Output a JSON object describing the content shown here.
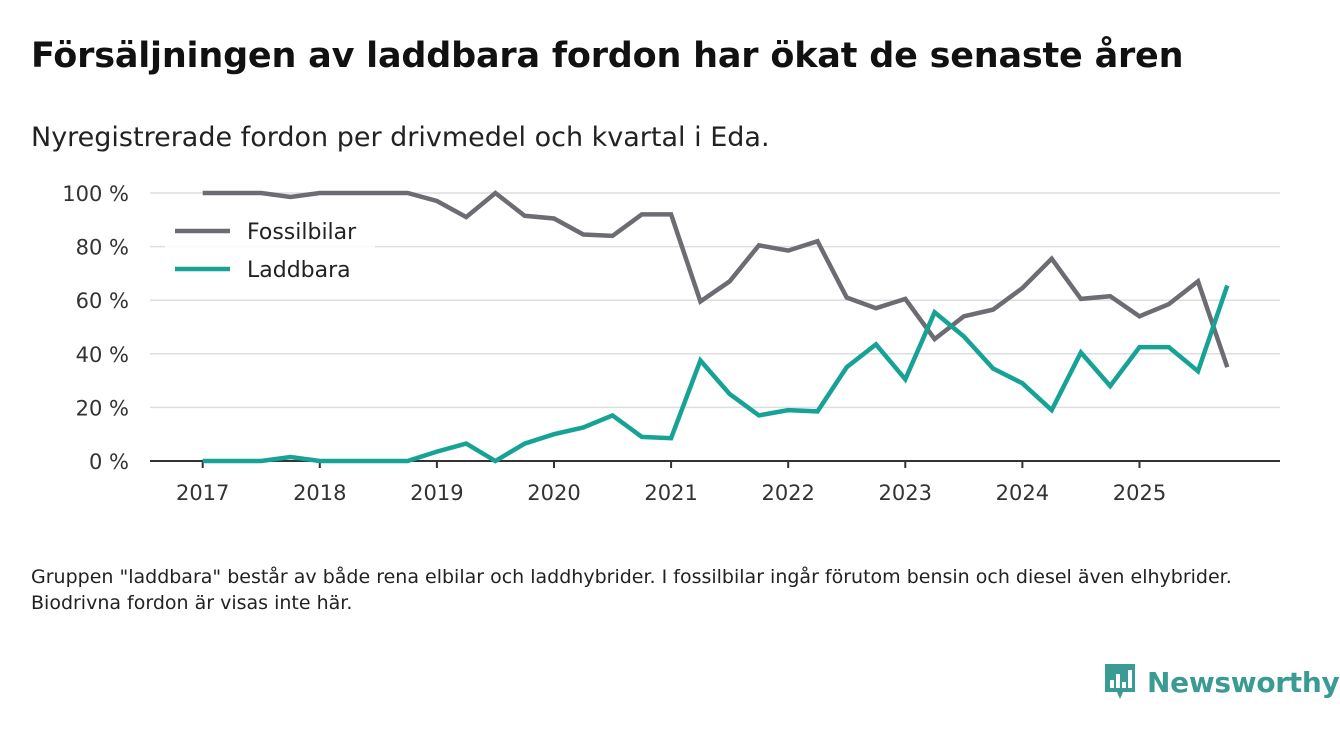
{
  "title": "Försäljningen av laddbara fordon har ökat de senaste åren",
  "subtitle": "Nyregistrerade fordon per drivmedel och kvartal i Eda.",
  "footnote": "Gruppen \"laddbara\" består av både rena elbilar och laddhybrider. I fossilbilar ingår förutom bensin och diesel även elhybrider. Biodrivna fordon är visas inte här.",
  "brand": {
    "name": "Newsworthy"
  },
  "colors": {
    "fossil": "#6d6c72",
    "laddbara": "#16a294",
    "grid": "#dedede",
    "axis": "#333333",
    "brand": "#3a9a94"
  },
  "chart_data": {
    "type": "line",
    "title": "Försäljningen av laddbara fordon har ökat de senaste åren",
    "subtitle": "Nyregistrerade fordon per drivmedel och kvartal i Eda.",
    "xlabel": "",
    "ylabel": "",
    "x": [
      2017.0,
      2017.25,
      2017.5,
      2017.75,
      2018.0,
      2018.25,
      2018.5,
      2018.75,
      2019.0,
      2019.25,
      2019.5,
      2019.75,
      2020.0,
      2020.25,
      2020.5,
      2020.75,
      2021.0,
      2021.25,
      2021.5,
      2021.75,
      2022.0,
      2022.25,
      2022.5,
      2022.75,
      2023.0,
      2023.25,
      2023.5,
      2023.75,
      2024.0,
      2024.25,
      2024.5,
      2024.75,
      2025.0,
      2025.25,
      2025.5,
      2025.75
    ],
    "xticks": [
      2017,
      2018,
      2019,
      2020,
      2021,
      2022,
      2023,
      2024,
      2025
    ],
    "xlim": [
      2016.55,
      2026.2
    ],
    "yticks": [
      0,
      20,
      40,
      60,
      80,
      100
    ],
    "ytick_labels": [
      "0 %",
      "20 %",
      "40 %",
      "60 %",
      "80 %",
      "100 %"
    ],
    "ylim": [
      0,
      100
    ],
    "grid": true,
    "legend_position": "top-left",
    "series": [
      {
        "name": "Fossilbilar",
        "color": "#6d6c72",
        "values": [
          100,
          100,
          100,
          98.5,
          100,
          100,
          100,
          100,
          97,
          91,
          100,
          91.5,
          90.5,
          84.5,
          84,
          92,
          92,
          59.5,
          67,
          80.5,
          78.5,
          82,
          61,
          57,
          60.5,
          45.5,
          54,
          56.5,
          64.5,
          75.5,
          60.5,
          61.5,
          54,
          58.5,
          67,
          35
        ]
      },
      {
        "name": "Laddbara",
        "color": "#16a294",
        "values": [
          0,
          0,
          0,
          1.5,
          0,
          0,
          0,
          0,
          3.5,
          6.5,
          0,
          6.5,
          10,
          12.5,
          17,
          9,
          8.5,
          37.5,
          25,
          17,
          19,
          18.5,
          35,
          43.5,
          30.5,
          55.5,
          46.5,
          34.5,
          29,
          19,
          40.5,
          28,
          42.5,
          42.5,
          33.5,
          65.5
        ]
      }
    ]
  }
}
